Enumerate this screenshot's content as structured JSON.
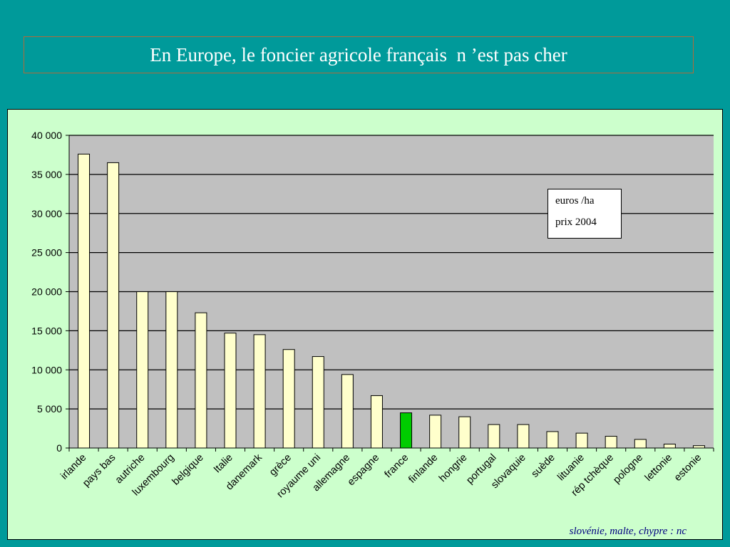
{
  "title": "En Europe, le foncier agricole français  n ’est pas cher",
  "legend_box": {
    "line1": "euros /ha",
    "line2": "prix 2004"
  },
  "footnote": "slovénie, malte, chypre : nc",
  "colors": {
    "background": "#009a9a",
    "panel": "#ccffcc",
    "plot_area": "#c0c0c0",
    "bar": "#ffffcc",
    "highlight_bar": "#00cc00"
  },
  "chart_data": {
    "type": "bar",
    "categories": [
      "irlande",
      "pays bas",
      "autriche",
      "luxembourg",
      "belgique",
      "Italie",
      "danemark",
      "grèce",
      "royaume uni",
      "allemagne",
      "espagne",
      "france",
      "finlande",
      "hongrie",
      "portugal",
      "slovaquie",
      "suède",
      "lituanie",
      "rép tchèque",
      "pologne",
      "lettonie",
      "estonie"
    ],
    "values": [
      37600,
      36500,
      20000,
      20000,
      17300,
      14700,
      14500,
      12600,
      11700,
      9400,
      6700,
      4500,
      4200,
      4000,
      3000,
      3000,
      2100,
      1900,
      1500,
      1100,
      500,
      300
    ],
    "highlight_category": "france",
    "ylim": [
      0,
      40000
    ],
    "yticks": [
      0,
      5000,
      10000,
      15000,
      20000,
      25000,
      30000,
      35000,
      40000
    ],
    "ytick_labels": [
      "0",
      "5 000",
      "10 000",
      "15 000",
      "20 000",
      "25 000",
      "30 000",
      "35 000",
      "40 000"
    ],
    "grid": true
  }
}
